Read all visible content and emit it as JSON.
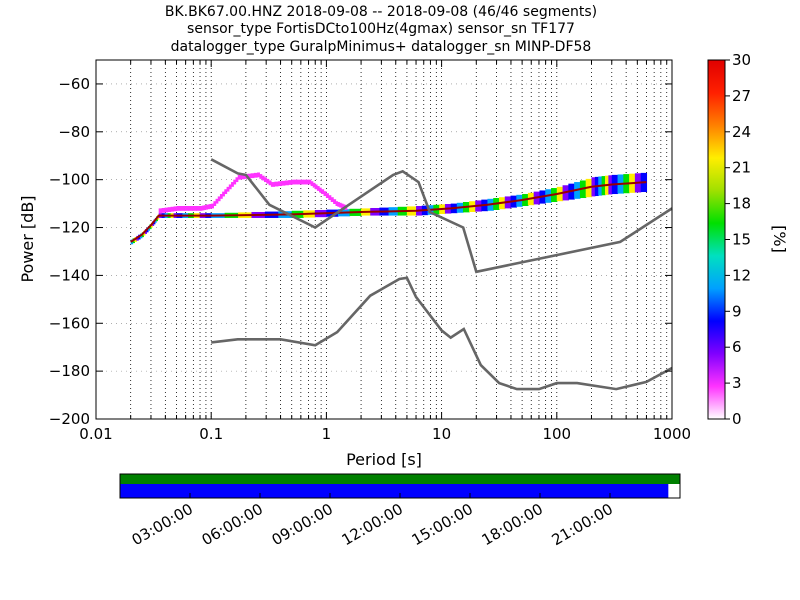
{
  "title_lines": [
    "BK.BK67.00.HNZ   2018-09-08 -- 2018-09-08  (46/46 segments)",
    "sensor_type FortisDCto100Hz(4gmax) sensor_sn TF177",
    "datalogger_type GuralpMinimus+ datalogger_sn MINP-DF58"
  ],
  "chart_data": {
    "type": "heatmap",
    "xlabel": "Period [s]",
    "ylabel": "Power [dB]",
    "xscale": "log",
    "xlim": [
      0.01,
      1000
    ],
    "ylim": [
      -200,
      -50
    ],
    "x_ticks": [
      {
        "value": 0.01,
        "label": "0.01"
      },
      {
        "value": 0.1,
        "label": "0.1"
      },
      {
        "value": 1,
        "label": "1"
      },
      {
        "value": 10,
        "label": "10"
      },
      {
        "value": 100,
        "label": "100"
      },
      {
        "value": 1000,
        "label": "1000"
      }
    ],
    "y_ticks": [
      {
        "value": -200,
        "label": "−200"
      },
      {
        "value": -180,
        "label": "−180"
      },
      {
        "value": -160,
        "label": "−160"
      },
      {
        "value": -140,
        "label": "−140"
      },
      {
        "value": -120,
        "label": "−120"
      },
      {
        "value": -100,
        "label": "−100"
      },
      {
        "value": -80,
        "label": "−80"
      },
      {
        "value": -60,
        "label": "−60"
      }
    ],
    "grid": "dotted-vertical",
    "noise_models": [
      {
        "line": "upper",
        "color": "#666666",
        "points": [
          [
            0.1,
            -91.5
          ],
          [
            0.17,
            -97.4
          ],
          [
            0.2,
            -98
          ],
          [
            0.32,
            -110.5
          ],
          [
            0.8,
            -120
          ],
          [
            3.8,
            -98
          ],
          [
            4.6,
            -96.5
          ],
          [
            6.3,
            -101
          ],
          [
            7.9,
            -113.5
          ],
          [
            15.4,
            -120
          ],
          [
            20,
            -138.5
          ],
          [
            354.8,
            -126
          ],
          [
            1000,
            -112
          ]
        ]
      },
      {
        "line": "lower",
        "color": "#666666",
        "points": [
          [
            0.1,
            -168
          ],
          [
            0.17,
            -166.7
          ],
          [
            0.4,
            -166.7
          ],
          [
            0.8,
            -169.2
          ],
          [
            1.24,
            -163.7
          ],
          [
            2.4,
            -148.5
          ],
          [
            4.3,
            -141.5
          ],
          [
            5,
            -141
          ],
          [
            6,
            -149
          ],
          [
            10,
            -163
          ],
          [
            12,
            -166
          ],
          [
            15.6,
            -162.4
          ],
          [
            21.9,
            -177.5
          ],
          [
            31.6,
            -185
          ],
          [
            45,
            -187.5
          ],
          [
            70,
            -187.5
          ],
          [
            100,
            -185
          ],
          [
            150,
            -185
          ],
          [
            328,
            -187.5
          ],
          [
            600,
            -184.5
          ],
          [
            1000,
            -178.7
          ]
        ]
      }
    ],
    "psd_bands": [
      {
        "name": "noise-floor",
        "color_pct": 22,
        "band": [
          [
            0.02,
            -127,
            -125
          ],
          [
            0.025,
            -124,
            -122
          ],
          [
            0.03,
            -120,
            -118
          ],
          [
            0.035,
            -116,
            -114
          ],
          [
            0.05,
            -116,
            -114
          ],
          [
            0.1,
            -116,
            -114
          ],
          [
            0.5,
            -116,
            -113
          ],
          [
            2,
            -115,
            -112
          ],
          [
            6,
            -115,
            -111
          ],
          [
            12,
            -114,
            -110
          ],
          [
            25,
            -113,
            -108
          ],
          [
            50,
            -111,
            -106
          ],
          [
            100,
            -109,
            -103
          ],
          [
            200,
            -107,
            -99
          ],
          [
            300,
            -106,
            -98
          ],
          [
            600,
            -105,
            -97
          ]
        ]
      },
      {
        "name": "bump",
        "color_pct": 3,
        "band": [
          [
            0.035,
            -114,
            -112
          ],
          [
            0.05,
            -113,
            -111
          ],
          [
            0.08,
            -113,
            -111
          ],
          [
            0.1,
            -112,
            -110
          ],
          [
            0.13,
            -106,
            -104
          ],
          [
            0.17,
            -100,
            -98
          ],
          [
            0.25,
            -99,
            -97
          ],
          [
            0.33,
            -103,
            -101
          ],
          [
            0.5,
            -102,
            -100
          ],
          [
            0.7,
            -102,
            -100
          ],
          [
            0.9,
            -106,
            -104
          ],
          [
            1.2,
            -111,
            -109
          ],
          [
            1.5,
            -113,
            -111
          ]
        ]
      }
    ],
    "colorbar": {
      "label": "[%]",
      "range": [
        0,
        30
      ],
      "ticks": [
        {
          "value": 0,
          "label": "0"
        },
        {
          "value": 3,
          "label": "3"
        },
        {
          "value": 6,
          "label": "6"
        },
        {
          "value": 9,
          "label": "9"
        },
        {
          "value": 12,
          "label": "12"
        },
        {
          "value": 15,
          "label": "15"
        },
        {
          "value": 18,
          "label": "18"
        },
        {
          "value": 21,
          "label": "21"
        },
        {
          "value": 24,
          "label": "24"
        },
        {
          "value": 27,
          "label": "27"
        },
        {
          "value": 30,
          "label": "30"
        }
      ],
      "colors": [
        "#ffffff",
        "#ff33ff",
        "#8000ff",
        "#0000ff",
        "#00a0ff",
        "#00e0c0",
        "#00e000",
        "#a0e000",
        "#ffee00",
        "#ff8000",
        "#ff2000",
        "#e00000"
      ]
    },
    "mode_line_color": "#990000",
    "time_coverage": {
      "ticks": [
        "03:00:00",
        "06:00:00",
        "09:00:00",
        "12:00:00",
        "15:00:00",
        "18:00:00",
        "21:00:00"
      ],
      "tick_hours": [
        3,
        6,
        9,
        12,
        15,
        18,
        21
      ],
      "range_hours": [
        0,
        24
      ],
      "data_until_hours": 23.5,
      "gap_color": "#008000",
      "data_color": "#0000ff"
    }
  }
}
